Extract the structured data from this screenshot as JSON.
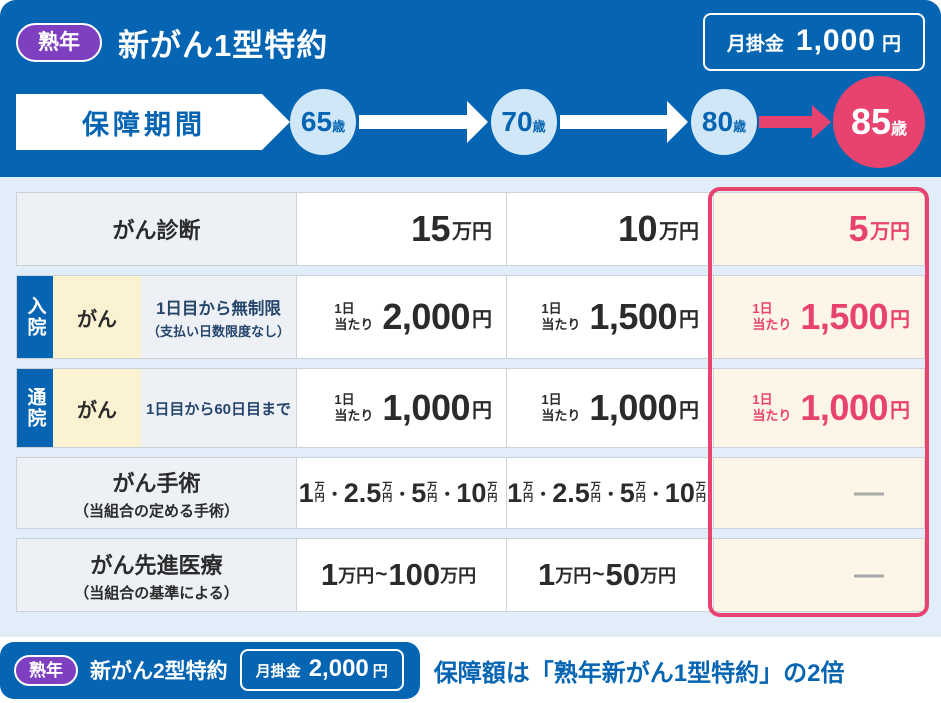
{
  "colors": {
    "blue": "#0665b2",
    "pink": "#e8436e",
    "purple": "#7e3fc0",
    "light_blue_bg": "#e2edfa",
    "pale_blue_circle": "#cfe7f6",
    "cream_highlight": "#fdf6e7",
    "cream_sub": "#fbf2d2",
    "navy_text": "#26456b"
  },
  "header": {
    "badge": "熟年",
    "title": "新がん1型特約",
    "premium": {
      "label": "月掛金",
      "amount": "1,000",
      "unit": "円"
    }
  },
  "timeline": {
    "label": "保障期間",
    "ages": [
      {
        "num": "65",
        "suffix": "歳"
      },
      {
        "num": "70",
        "suffix": "歳"
      },
      {
        "num": "80",
        "suffix": "歳"
      },
      {
        "num": "85",
        "suffix": "歳"
      }
    ]
  },
  "table": {
    "empty_marker": "—",
    "rows": {
      "diagnosis": {
        "header": "がん診断",
        "values": [
          {
            "big": "15",
            "unit": "万円"
          },
          {
            "big": "10",
            "unit": "万円"
          },
          {
            "big": "5",
            "unit": "万円"
          }
        ]
      },
      "hospitalization": {
        "tab": "入院",
        "sub": "がん",
        "condition_line1": "1日目から無制限",
        "condition_line2": "（支払い日数限度なし）",
        "per_line1": "1日",
        "per_line2": "当たり",
        "values": [
          {
            "big": "2,000",
            "unit": "円"
          },
          {
            "big": "1,500",
            "unit": "円"
          },
          {
            "big": "1,500",
            "unit": "円"
          }
        ]
      },
      "outpatient": {
        "tab": "通院",
        "sub": "がん",
        "condition_line1": "1日目から60日目まで",
        "per_line1": "1日",
        "per_line2": "当たり",
        "values": [
          {
            "big": "1,000",
            "unit": "円"
          },
          {
            "big": "1,000",
            "unit": "円"
          },
          {
            "big": "1,000",
            "unit": "円"
          }
        ]
      },
      "surgery": {
        "header": "がん手術",
        "note": "（当組合の定める手術）",
        "man": "万",
        "yen": "円",
        "sep": "・",
        "sets": [
          [
            "1",
            "2.5",
            "5",
            "10"
          ],
          [
            "1",
            "2.5",
            "5",
            "10"
          ]
        ]
      },
      "advanced": {
        "header": "がん先進医療",
        "note": "（当組合の基準による）",
        "ranges": [
          {
            "from": "1",
            "from_unit": "万円",
            "tilde": "~",
            "to": "100",
            "to_unit": "万円"
          },
          {
            "from": "1",
            "from_unit": "万円",
            "tilde": "~",
            "to": "50",
            "to_unit": "万円"
          }
        ]
      }
    }
  },
  "footer": {
    "badge": "熟年",
    "title": "新がん2型特約",
    "premium": {
      "label": "月掛金",
      "amount": "2,000",
      "unit": "円"
    },
    "note": "保障額は「熟年新がん1型特約」の2倍"
  }
}
